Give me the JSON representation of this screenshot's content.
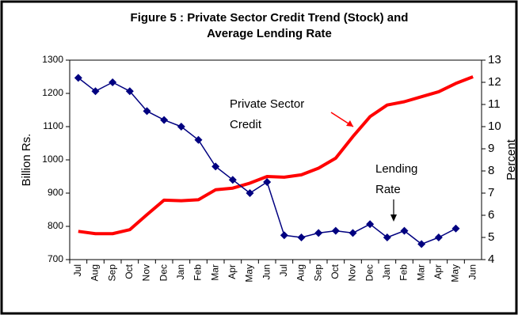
{
  "chart_data": {
    "type": "line",
    "title": [
      "Figure 5 : Private Sector Credit Trend (Stock) and",
      "Average Lending Rate"
    ],
    "ylabel": "Billion Rs.",
    "y2label": "Percent",
    "categories": [
      "Jul",
      "Aug",
      "Sep",
      "Oct",
      "Nov",
      "Dec",
      "Jan",
      "Feb",
      "Mar",
      "Apr",
      "May",
      "Jun",
      "Jul",
      "Aug",
      "Sep",
      "Oct",
      "Nov",
      "Dec",
      "Jan",
      "Feb",
      "Mar",
      "Apr",
      "May",
      "Jun"
    ],
    "series": [
      {
        "name": "Private Sector Credit",
        "color": "#ff0000",
        "values": [
          785,
          778,
          778,
          790,
          835,
          879,
          877,
          880,
          910,
          915,
          930,
          950,
          948,
          955,
          975,
          1005,
          1070,
          1130,
          1165,
          1175,
          1190,
          1205,
          1230,
          1250
        ]
      },
      {
        "name": "Lending Rate",
        "color": "#000080",
        "axis": "y2",
        "marker": "diamond",
        "values": [
          12.2,
          11.6,
          12.0,
          11.6,
          10.7,
          10.3,
          10.0,
          9.4,
          8.2,
          7.6,
          7.0,
          7.5,
          5.1,
          5.0,
          5.2,
          5.3,
          5.2,
          5.6,
          5.0,
          5.3,
          4.7,
          5.0,
          5.4,
          null
        ]
      }
    ],
    "annotations": [
      {
        "lines": [
          "Private Sector",
          "Credit"
        ],
        "color": "#ff0000"
      },
      {
        "lines": [
          "Lending",
          "Rate"
        ],
        "color": "#000080"
      }
    ],
    "ylim": [
      700,
      1300
    ],
    "yticks": [
      700,
      800,
      900,
      1000,
      1100,
      1200,
      1300
    ],
    "y2lim": [
      4,
      13
    ],
    "y2ticks": [
      4,
      5,
      6,
      7,
      8,
      9,
      10,
      11,
      12,
      13
    ]
  }
}
